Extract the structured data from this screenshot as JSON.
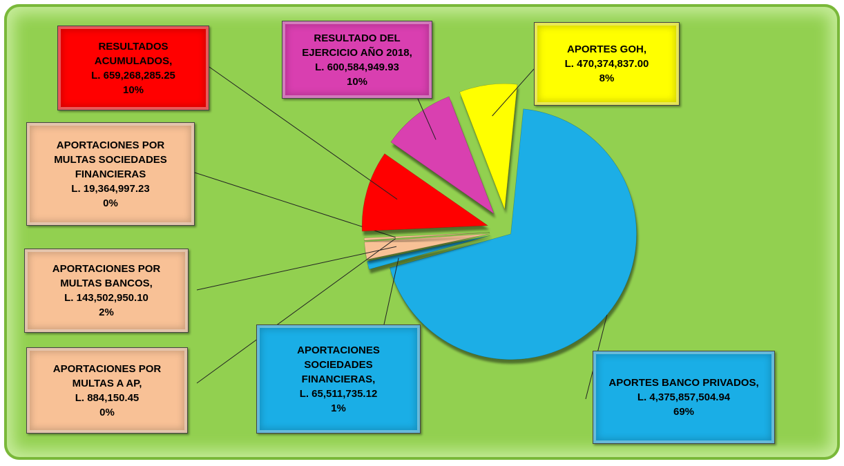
{
  "chart_data": {
    "type": "pie",
    "categories": [
      "APORTES GOH,",
      "APORTES BANCO PRIVADOS,",
      "APORTACIONES SOCIEDADES FINANCIERAS,",
      "APORTACIONES POR MULTAS BANCOS,",
      "APORTACIONES POR MULTAS A AP,",
      "APORTACIONES POR MULTAS SOCIEDADES FINANCIERAS",
      "RESULTADOS ACUMULADOS,",
      "RESULTADO DEL EJERCICIO AÑO 2018,"
    ],
    "values": [
      470374837.0,
      4375857504.94,
      65511735.12,
      143502950.1,
      884150.45,
      19364997.23,
      659268285.25,
      600584949.93
    ],
    "value_labels": [
      "L. 470,374,837.00",
      "L. 4,375,857,504.94",
      "L. 65,511,735.12",
      "L. 143,502,950.10",
      "L. 884,150.45",
      "L. 19,364,997.23",
      "L. 659,268,285.25",
      "L. 600,584,949.93"
    ],
    "percents": [
      8,
      69,
      1,
      2,
      0,
      0,
      10,
      10
    ],
    "percent_labels": [
      "8%",
      "69%",
      "1%",
      "2%",
      "0%",
      "0%",
      "10%",
      "10%"
    ],
    "colors": [
      "#ffff00",
      "#1aaee6",
      "#1aaee6",
      "#f8c196",
      "#f8c196",
      "#f8c196",
      "#ff0000",
      "#d93fb0"
    ]
  }
}
